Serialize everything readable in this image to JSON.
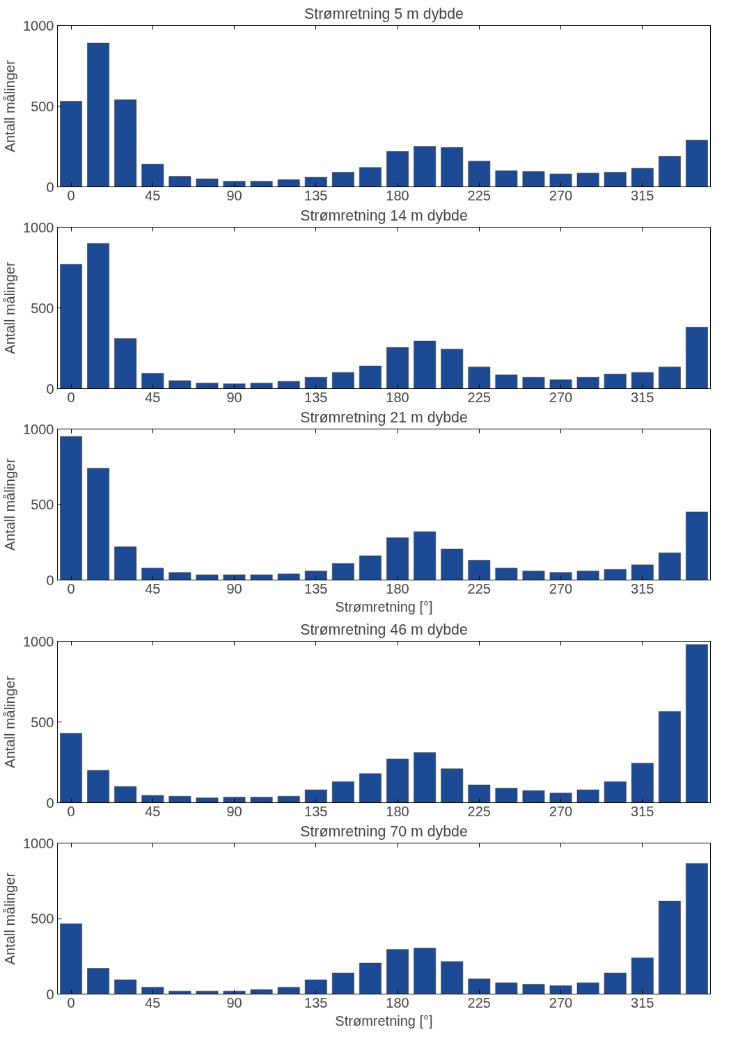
{
  "chart_data": [
    {
      "type": "bar",
      "title": "Strømretning 5 m dybde",
      "ylabel": "Antall målinger",
      "x": [
        0,
        15,
        30,
        45,
        60,
        75,
        90,
        105,
        120,
        135,
        150,
        165,
        180,
        195,
        210,
        225,
        240,
        255,
        270,
        285,
        300,
        315,
        330,
        345
      ],
      "values": [
        530,
        890,
        540,
        140,
        65,
        50,
        35,
        35,
        45,
        60,
        90,
        120,
        220,
        250,
        245,
        160,
        100,
        95,
        80,
        85,
        90,
        115,
        190,
        290
      ],
      "color": "#1d4a94",
      "xlim": [
        -7.5,
        352.5
      ],
      "xticks": [
        0,
        45,
        90,
        135,
        180,
        225,
        270,
        315
      ],
      "ylim": [
        0,
        1000
      ],
      "yticks": [
        0,
        500,
        1000
      ]
    },
    {
      "type": "bar",
      "title": "Strømretning 14 m dybde",
      "ylabel": "Antall målinger",
      "x": [
        0,
        15,
        30,
        45,
        60,
        75,
        90,
        105,
        120,
        135,
        150,
        165,
        180,
        195,
        210,
        225,
        240,
        255,
        270,
        285,
        300,
        315,
        330,
        345
      ],
      "values": [
        770,
        900,
        310,
        95,
        50,
        35,
        30,
        35,
        45,
        70,
        100,
        140,
        255,
        295,
        245,
        135,
        85,
        70,
        55,
        70,
        90,
        100,
        135,
        380
      ],
      "color": "#1d4a94",
      "xlim": [
        -7.5,
        352.5
      ],
      "xticks": [
        0,
        45,
        90,
        135,
        180,
        225,
        270,
        315
      ],
      "ylim": [
        0,
        1000
      ],
      "yticks": [
        0,
        500,
        1000
      ]
    },
    {
      "type": "bar",
      "title": "Strømretning 21 m dybde",
      "xlabel": "Strømretning [°]",
      "ylabel": "Antall målinger",
      "x": [
        0,
        15,
        30,
        45,
        60,
        75,
        90,
        105,
        120,
        135,
        150,
        165,
        180,
        195,
        210,
        225,
        240,
        255,
        270,
        285,
        300,
        315,
        330,
        345
      ],
      "values": [
        950,
        740,
        220,
        80,
        50,
        35,
        35,
        35,
        40,
        60,
        110,
        160,
        280,
        320,
        205,
        130,
        80,
        60,
        50,
        60,
        70,
        100,
        180,
        450
      ],
      "color": "#1d4a94",
      "xlim": [
        -7.5,
        352.5
      ],
      "xticks": [
        0,
        45,
        90,
        135,
        180,
        225,
        270,
        315
      ],
      "ylim": [
        0,
        1000
      ],
      "yticks": [
        0,
        500,
        1000
      ]
    },
    {
      "type": "bar",
      "title": "Strømretning 46 m dybde",
      "ylabel": "Antall målinger",
      "x": [
        0,
        15,
        30,
        45,
        60,
        75,
        90,
        105,
        120,
        135,
        150,
        165,
        180,
        195,
        210,
        225,
        240,
        255,
        270,
        285,
        300,
        315,
        330,
        345
      ],
      "values": [
        430,
        200,
        100,
        45,
        40,
        30,
        35,
        35,
        40,
        80,
        130,
        180,
        270,
        310,
        210,
        110,
        90,
        75,
        60,
        80,
        130,
        245,
        565,
        980
      ],
      "color": "#1d4a94",
      "xlim": [
        -7.5,
        352.5
      ],
      "xticks": [
        0,
        45,
        90,
        135,
        180,
        225,
        270,
        315
      ],
      "ylim": [
        0,
        1000
      ],
      "yticks": [
        0,
        500,
        1000
      ]
    },
    {
      "type": "bar",
      "title": "Strømretning 70 m dybde",
      "xlabel": "Strømretning [°]",
      "ylabel": "Antall målinger",
      "x": [
        0,
        15,
        30,
        45,
        60,
        75,
        90,
        105,
        120,
        135,
        150,
        165,
        180,
        195,
        210,
        225,
        240,
        255,
        270,
        285,
        300,
        315,
        330,
        345
      ],
      "values": [
        465,
        170,
        95,
        45,
        20,
        20,
        20,
        30,
        45,
        95,
        140,
        205,
        295,
        305,
        215,
        100,
        75,
        65,
        55,
        75,
        140,
        240,
        615,
        865
      ],
      "color": "#1d4a94",
      "xlim": [
        -7.5,
        352.5
      ],
      "xticks": [
        0,
        45,
        90,
        135,
        180,
        225,
        270,
        315
      ],
      "ylim": [
        0,
        1000
      ],
      "yticks": [
        0,
        500,
        1000
      ]
    }
  ]
}
